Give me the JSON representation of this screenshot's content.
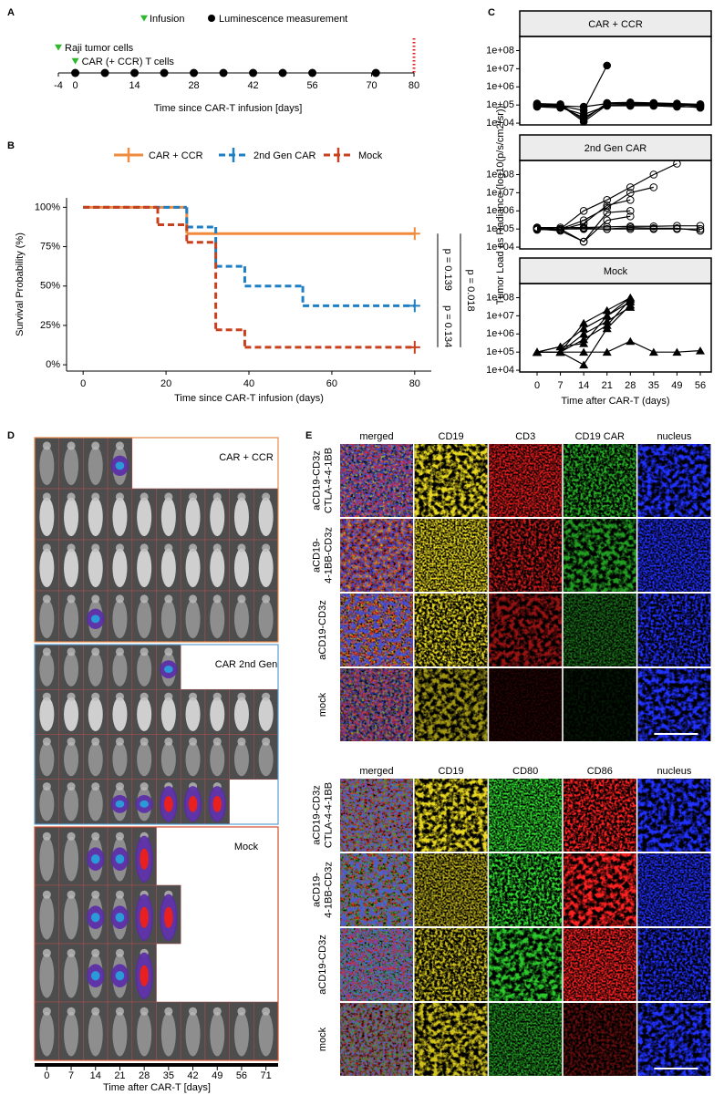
{
  "panel_labels": [
    "A",
    "B",
    "C",
    "D",
    "E"
  ],
  "chart_data": [
    {
      "type": "timeline",
      "legend": [
        {
          "marker": "triangle",
          "label": "Infusion"
        },
        {
          "marker": "dot",
          "label": "Luminescence measurement"
        }
      ],
      "events": [
        {
          "label": "Raji tumor cells",
          "x": -4
        },
        {
          "label": "CAR (+ CCR) T cells",
          "x": 0
        }
      ],
      "event_color": "#2db82d",
      "measurements": [
        0,
        7,
        14,
        21,
        28,
        35,
        42,
        49,
        56,
        71
      ],
      "endpoint": 80,
      "endpoint_color": "#e02020",
      "xlim": [
        -4,
        80
      ],
      "xticks": [
        -4,
        0,
        14,
        28,
        42,
        56,
        70,
        80
      ],
      "x_label": "Time since CAR-T infusion [days]"
    },
    {
      "type": "step",
      "x_label": "Time since CAR-T infusion (days)",
      "y_label": "Survival Probability (%)",
      "xlim": [
        -4,
        84
      ],
      "xticks": [
        0,
        20,
        40,
        60,
        80
      ],
      "ylim": [
        -4,
        106
      ],
      "yticks": [
        {
          "value": 0,
          "label": "0%"
        },
        {
          "value": 25,
          "label": "25%"
        },
        {
          "value": 50,
          "label": "50%"
        },
        {
          "value": 75,
          "label": "75%"
        },
        {
          "value": 100,
          "label": "100%"
        }
      ],
      "series": [
        {
          "name": "CAR + CCR",
          "color": "#f08a3c",
          "linestyle": "solid",
          "x": [
            0,
            25,
            80
          ],
          "values": [
            100,
            83.3,
            83.3
          ]
        },
        {
          "name": "2nd Gen CAR",
          "color": "#1f7fc4",
          "linestyle": "dashed",
          "x": [
            0,
            25,
            32,
            39,
            53,
            80
          ],
          "values": [
            100,
            87.5,
            62.5,
            50,
            37.5,
            37.5
          ]
        },
        {
          "name": "Mock",
          "color": "#c8401e",
          "linestyle": "dashed",
          "x": [
            0,
            18,
            25,
            32,
            39,
            80
          ],
          "values": [
            100,
            88.9,
            77.8,
            22.2,
            11.1,
            11.1
          ]
        }
      ],
      "annotations": [
        "p = 0.139",
        "p = 0.134",
        "p = 0.018"
      ]
    },
    {
      "type": "line",
      "strip_title": "CAR + CCR",
      "marker": "circle",
      "color": "#000000",
      "log_scale": true,
      "y_label": "Tumor Load as Radiance (log10(p/s/cm2/sr))",
      "categories": [
        "0",
        "7",
        "14",
        "21",
        "28",
        "35",
        "49",
        "56"
      ],
      "ylim": [
        8000,
        600000000
      ],
      "yticks": [
        {
          "value": 10000,
          "label": "1e+04"
        },
        {
          "value": 100000,
          "label": "1e+05"
        },
        {
          "value": 1000000,
          "label": "1e+06"
        },
        {
          "value": 10000000,
          "label": "1e+07"
        },
        {
          "value": 100000000,
          "label": "1e+08"
        }
      ],
      "series": [
        {
          "values": [
            100000,
            90000,
            50000,
            15000000,
            null,
            null,
            null,
            null
          ]
        },
        {
          "values": [
            120000,
            110000,
            15000,
            130000,
            140000,
            130000,
            120000,
            110000
          ]
        },
        {
          "values": [
            90000,
            80000,
            20000,
            100000,
            110000,
            110000,
            100000,
            90000
          ]
        },
        {
          "values": [
            100000,
            90000,
            80000,
            120000,
            120000,
            120000,
            110000,
            100000
          ]
        },
        {
          "values": [
            80000,
            70000,
            30000,
            90000,
            90000,
            90000,
            80000,
            80000
          ]
        },
        {
          "values": [
            110000,
            100000,
            12000,
            100000,
            100000,
            100000,
            90000,
            70000
          ]
        }
      ]
    },
    {
      "type": "line",
      "strip_title": "2nd Gen CAR",
      "marker": "circle-open",
      "color": "#000000",
      "log_scale": true,
      "categories": [
        "0",
        "7",
        "14",
        "21",
        "28",
        "35",
        "49",
        "56"
      ],
      "ylim": [
        8000,
        600000000
      ],
      "yticks": [
        {
          "value": 10000,
          "label": "1e+04"
        },
        {
          "value": 100000,
          "label": "1e+05"
        },
        {
          "value": 1000000,
          "label": "1e+06"
        },
        {
          "value": 10000000,
          "label": "1e+07"
        },
        {
          "value": 100000000,
          "label": "1e+08"
        }
      ],
      "series": [
        {
          "values": [
            120000,
            100000,
            1000000,
            4000000,
            20000000,
            100000000,
            400000000,
            null
          ]
        },
        {
          "values": [
            100000,
            100000,
            300000,
            1500000,
            10000000,
            20000000,
            null,
            null
          ]
        },
        {
          "values": [
            100000,
            90000,
            200000,
            2000000,
            4000000,
            null,
            null,
            null
          ]
        },
        {
          "values": [
            110000,
            100000,
            20000,
            800000,
            1000000,
            null,
            null,
            null
          ]
        },
        {
          "values": [
            100000,
            80000,
            20000,
            300000,
            500000,
            null,
            null,
            null
          ]
        },
        {
          "values": [
            120000,
            120000,
            120000,
            130000,
            140000,
            140000,
            150000,
            150000
          ]
        },
        {
          "values": [
            90000,
            100000,
            100000,
            100000,
            100000,
            100000,
            100000,
            100000
          ]
        },
        {
          "values": [
            100000,
            100000,
            110000,
            100000,
            120000,
            110000,
            110000,
            80000
          ]
        }
      ]
    },
    {
      "type": "line",
      "strip_title": "Mock",
      "marker": "triangle",
      "color": "#000000",
      "log_scale": true,
      "x_label": "Time after CAR-T (days)",
      "categories": [
        "0",
        "7",
        "14",
        "21",
        "28",
        "35",
        "49",
        "56"
      ],
      "ylim": [
        8000,
        600000000
      ],
      "yticks": [
        {
          "value": 10000,
          "label": "1e+04"
        },
        {
          "value": 100000,
          "label": "1e+05"
        },
        {
          "value": 1000000,
          "label": "1e+06"
        },
        {
          "value": 10000000,
          "label": "1e+07"
        },
        {
          "value": 100000000,
          "label": "1e+08"
        }
      ],
      "series": [
        {
          "values": [
            100000,
            100000,
            4000000,
            20000000,
            100000000,
            null,
            null,
            null
          ]
        },
        {
          "values": [
            100000,
            200000,
            2000000,
            10000000,
            60000000,
            null,
            null,
            null
          ]
        },
        {
          "values": [
            100000,
            100000,
            1000000,
            5000000,
            30000000,
            null,
            null,
            null
          ]
        },
        {
          "values": [
            100000,
            100000,
            500000,
            3000000,
            80000000,
            null,
            null,
            null
          ]
        },
        {
          "values": [
            100000,
            200000,
            300000,
            10000000,
            100000000,
            null,
            null,
            null
          ]
        },
        {
          "values": [
            100000,
            100000,
            20000,
            2000000,
            40000000,
            null,
            null,
            null
          ]
        },
        {
          "values": [
            100000,
            100000,
            100000,
            100000,
            400000,
            100000,
            100000,
            120000
          ]
        }
      ]
    }
  ],
  "imaging": {
    "groups": [
      "CAR + CCR",
      "CAR 2nd Gen",
      "Mock"
    ],
    "x_categories": [
      "0",
      "7",
      "14",
      "21",
      "28",
      "35",
      "42",
      "49",
      "56",
      "71"
    ],
    "x_label": "Time after CAR-T [days]"
  },
  "microscopy": [
    {
      "columns": [
        "merged",
        "CD19",
        "CD3",
        "CD19 CAR",
        "nucleus"
      ],
      "rows": [
        [
          "aCD19-CD3z",
          "CTLA-4-4-1BB"
        ],
        [
          "aCD19-",
          "4-1BB-CD3z"
        ],
        [
          "aCD19-CD3z"
        ],
        [
          "mock"
        ]
      ]
    },
    {
      "columns": [
        "merged",
        "CD19",
        "CD80",
        "CD86",
        "nucleus"
      ],
      "rows": [
        [
          "aCD19-CD3z",
          "CTLA-4-4-1BB"
        ],
        [
          "aCD19-",
          "4-1BB-CD3z"
        ],
        [
          "aCD19-CD3z"
        ],
        [
          "mock"
        ]
      ]
    }
  ]
}
